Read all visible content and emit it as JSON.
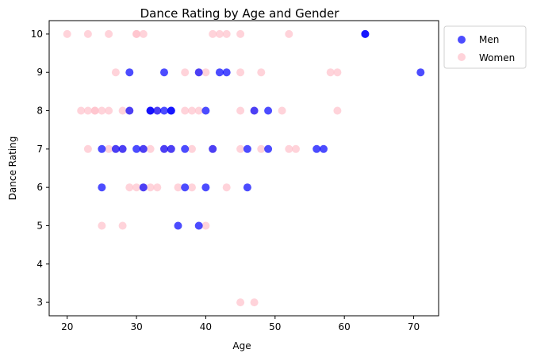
{
  "chart_data": {
    "type": "scatter",
    "title": "Dance Rating by Age and Gender",
    "xlabel": "Age",
    "ylabel": "Dance Rating",
    "xlim": [
      17.4,
      73.6
    ],
    "ylim": [
      2.65,
      10.35
    ],
    "xticks": [
      20,
      30,
      40,
      50,
      60,
      70
    ],
    "yticks": [
      3,
      4,
      5,
      6,
      7,
      8,
      9,
      10
    ],
    "grid": false,
    "legend_position": "outside-top-right",
    "series": [
      {
        "name": "Women",
        "color": "#ffc0cb",
        "opacity": 0.7,
        "points": [
          [
            20,
            10
          ],
          [
            23,
            10
          ],
          [
            26,
            10
          ],
          [
            30,
            10
          ],
          [
            30,
            10
          ],
          [
            31,
            10
          ],
          [
            41,
            10
          ],
          [
            42,
            10
          ],
          [
            43,
            10
          ],
          [
            45,
            10
          ],
          [
            52,
            10
          ],
          [
            27,
            9
          ],
          [
            37,
            9
          ],
          [
            39,
            9
          ],
          [
            40,
            9
          ],
          [
            45,
            9
          ],
          [
            48,
            9
          ],
          [
            58,
            9
          ],
          [
            59,
            9
          ],
          [
            22,
            8
          ],
          [
            23,
            8
          ],
          [
            24,
            8
          ],
          [
            24,
            8
          ],
          [
            25,
            8
          ],
          [
            26,
            8
          ],
          [
            28,
            8
          ],
          [
            29,
            8
          ],
          [
            32,
            8
          ],
          [
            33,
            8
          ],
          [
            37,
            8
          ],
          [
            38,
            8
          ],
          [
            39,
            8
          ],
          [
            45,
            8
          ],
          [
            47,
            8
          ],
          [
            51,
            8
          ],
          [
            59,
            8
          ],
          [
            23,
            7
          ],
          [
            26,
            7
          ],
          [
            27,
            7
          ],
          [
            28,
            7
          ],
          [
            31,
            7
          ],
          [
            32,
            7
          ],
          [
            34,
            7
          ],
          [
            35,
            7
          ],
          [
            38,
            7
          ],
          [
            41,
            7
          ],
          [
            45,
            7
          ],
          [
            48,
            7
          ],
          [
            52,
            7
          ],
          [
            53,
            7
          ],
          [
            29,
            6
          ],
          [
            30,
            6
          ],
          [
            31,
            6
          ],
          [
            32,
            6
          ],
          [
            33,
            6
          ],
          [
            36,
            6
          ],
          [
            38,
            6
          ],
          [
            43,
            6
          ],
          [
            25,
            5
          ],
          [
            28,
            5
          ],
          [
            40,
            5
          ],
          [
            45,
            3
          ],
          [
            47,
            3
          ]
        ]
      },
      {
        "name": "Men",
        "color": "#0000ff",
        "opacity": 0.7,
        "points": [
          [
            63,
            10
          ],
          [
            63,
            10
          ],
          [
            29,
            9
          ],
          [
            34,
            9
          ],
          [
            39,
            9
          ],
          [
            42,
            9
          ],
          [
            43,
            9
          ],
          [
            71,
            9
          ],
          [
            29,
            8
          ],
          [
            32,
            8
          ],
          [
            32,
            8
          ],
          [
            33,
            8
          ],
          [
            34,
            8
          ],
          [
            35,
            8
          ],
          [
            35,
            8
          ],
          [
            40,
            8
          ],
          [
            47,
            8
          ],
          [
            49,
            8
          ],
          [
            25,
            7
          ],
          [
            27,
            7
          ],
          [
            28,
            7
          ],
          [
            30,
            7
          ],
          [
            31,
            7
          ],
          [
            34,
            7
          ],
          [
            35,
            7
          ],
          [
            37,
            7
          ],
          [
            41,
            7
          ],
          [
            46,
            7
          ],
          [
            49,
            7
          ],
          [
            56,
            7
          ],
          [
            57,
            7
          ],
          [
            25,
            6
          ],
          [
            31,
            6
          ],
          [
            37,
            6
          ],
          [
            40,
            6
          ],
          [
            46,
            6
          ],
          [
            36,
            5
          ],
          [
            39,
            5
          ]
        ]
      }
    ]
  },
  "legend": {
    "items": [
      {
        "label": "Men",
        "color": "#0000ff"
      },
      {
        "label": "Women",
        "color": "#ffc0cb"
      }
    ]
  }
}
